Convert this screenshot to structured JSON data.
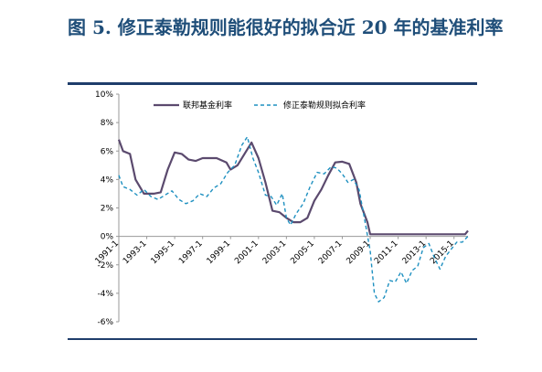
{
  "title": "图 5. 修正泰勒规则能很好的拟合近 20 年的基准利率",
  "chart_data": {
    "type": "line",
    "title": "",
    "xlabel": "",
    "ylabel": "",
    "ylim": [
      -6,
      10
    ],
    "yticks": [
      "10%",
      "8%",
      "6%",
      "4%",
      "2%",
      "0%",
      "-2%",
      "-4%",
      "-6%"
    ],
    "xticks": [
      "1991-1",
      "1993-1",
      "1995-1",
      "1997-1",
      "1999-1",
      "2001-1",
      "2003-1",
      "2005-1",
      "2007-1",
      "2009-1",
      "2011-1",
      "2013-1",
      "2015-1"
    ],
    "xlim": [
      1991,
      2016
    ],
    "legend_position": "top",
    "series": [
      {
        "name": "联邦基金利率",
        "color": "#5b4a6e",
        "style": "solid",
        "points": [
          [
            1991.0,
            6.8
          ],
          [
            1991.3,
            6.0
          ],
          [
            1991.8,
            5.8
          ],
          [
            1992.2,
            4.0
          ],
          [
            1992.8,
            3.0
          ],
          [
            1993.5,
            3.0
          ],
          [
            1994.0,
            3.1
          ],
          [
            1994.5,
            4.7
          ],
          [
            1995.0,
            5.9
          ],
          [
            1995.5,
            5.8
          ],
          [
            1996.0,
            5.4
          ],
          [
            1996.5,
            5.3
          ],
          [
            1997.0,
            5.5
          ],
          [
            1997.5,
            5.5
          ],
          [
            1998.0,
            5.5
          ],
          [
            1998.7,
            5.2
          ],
          [
            1999.0,
            4.7
          ],
          [
            1999.5,
            5.0
          ],
          [
            2000.0,
            5.8
          ],
          [
            2000.5,
            6.6
          ],
          [
            2001.0,
            5.5
          ],
          [
            2001.5,
            3.8
          ],
          [
            2002.0,
            1.8
          ],
          [
            2002.5,
            1.7
          ],
          [
            2003.0,
            1.3
          ],
          [
            2003.5,
            1.0
          ],
          [
            2004.0,
            1.0
          ],
          [
            2004.5,
            1.3
          ],
          [
            2005.0,
            2.5
          ],
          [
            2005.5,
            3.3
          ],
          [
            2006.0,
            4.3
          ],
          [
            2006.5,
            5.2
          ],
          [
            2007.0,
            5.25
          ],
          [
            2007.5,
            5.1
          ],
          [
            2008.0,
            3.8
          ],
          [
            2008.3,
            2.3
          ],
          [
            2008.8,
            1.0
          ],
          [
            2009.0,
            0.15
          ],
          [
            2015.8,
            0.15
          ],
          [
            2016.0,
            0.4
          ]
        ]
      },
      {
        "name": "修正泰勒规则拟合利率",
        "color": "#1e90c0",
        "style": "dashed",
        "points": [
          [
            1991.0,
            4.3
          ],
          [
            1991.3,
            3.5
          ],
          [
            1991.8,
            3.3
          ],
          [
            1992.3,
            2.9
          ],
          [
            1992.8,
            3.3
          ],
          [
            1993.3,
            2.8
          ],
          [
            1993.8,
            2.6
          ],
          [
            1994.3,
            2.9
          ],
          [
            1994.8,
            3.2
          ],
          [
            1995.3,
            2.6
          ],
          [
            1995.8,
            2.3
          ],
          [
            1996.3,
            2.5
          ],
          [
            1996.8,
            3.0
          ],
          [
            1997.3,
            2.8
          ],
          [
            1997.8,
            3.4
          ],
          [
            1998.3,
            3.7
          ],
          [
            1998.8,
            4.5
          ],
          [
            1999.3,
            5.0
          ],
          [
            1999.8,
            6.4
          ],
          [
            2000.2,
            7.0
          ],
          [
            2000.6,
            5.5
          ],
          [
            2001.0,
            4.5
          ],
          [
            2001.5,
            2.9
          ],
          [
            2001.9,
            2.8
          ],
          [
            2002.3,
            2.2
          ],
          [
            2002.7,
            3.0
          ],
          [
            2003.0,
            1.3
          ],
          [
            2003.3,
            0.8
          ],
          [
            2003.7,
            1.6
          ],
          [
            2004.2,
            2.3
          ],
          [
            2004.7,
            3.5
          ],
          [
            2005.2,
            4.5
          ],
          [
            2005.7,
            4.4
          ],
          [
            2006.2,
            4.9
          ],
          [
            2006.6,
            4.8
          ],
          [
            2007.0,
            4.4
          ],
          [
            2007.4,
            3.8
          ],
          [
            2007.8,
            4.0
          ],
          [
            2008.2,
            3.3
          ],
          [
            2008.6,
            1.2
          ],
          [
            2009.0,
            -1.0
          ],
          [
            2009.3,
            -4.0
          ],
          [
            2009.6,
            -4.6
          ],
          [
            2010.0,
            -4.3
          ],
          [
            2010.4,
            -3.1
          ],
          [
            2010.8,
            -3.2
          ],
          [
            2011.2,
            -2.5
          ],
          [
            2011.6,
            -3.3
          ],
          [
            2012.0,
            -2.4
          ],
          [
            2012.4,
            -2.1
          ],
          [
            2012.8,
            -0.8
          ],
          [
            2013.2,
            -0.5
          ],
          [
            2013.6,
            -1.5
          ],
          [
            2014.0,
            -2.3
          ],
          [
            2014.4,
            -1.4
          ],
          [
            2014.8,
            -0.9
          ],
          [
            2015.2,
            -0.4
          ],
          [
            2015.6,
            -0.4
          ],
          [
            2016.0,
            0.0
          ]
        ]
      }
    ]
  }
}
